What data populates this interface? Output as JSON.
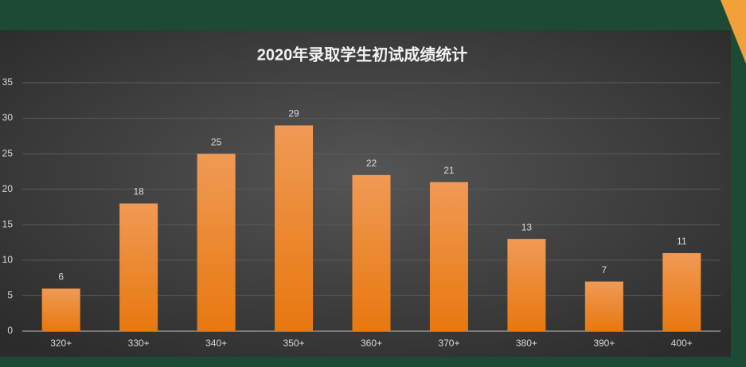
{
  "chart_data": {
    "type": "bar",
    "title": "2020年录取学生初试成绩统计",
    "categories": [
      "320+",
      "330+",
      "340+",
      "350+",
      "360+",
      "370+",
      "380+",
      "390+",
      "400+"
    ],
    "values": [
      6,
      18,
      25,
      29,
      22,
      21,
      13,
      7,
      11
    ],
    "color": "#ec7d1e",
    "ylim": [
      0,
      35
    ],
    "yticks": [
      0,
      5,
      10,
      15,
      20,
      25,
      30,
      35
    ],
    "grid": true
  }
}
